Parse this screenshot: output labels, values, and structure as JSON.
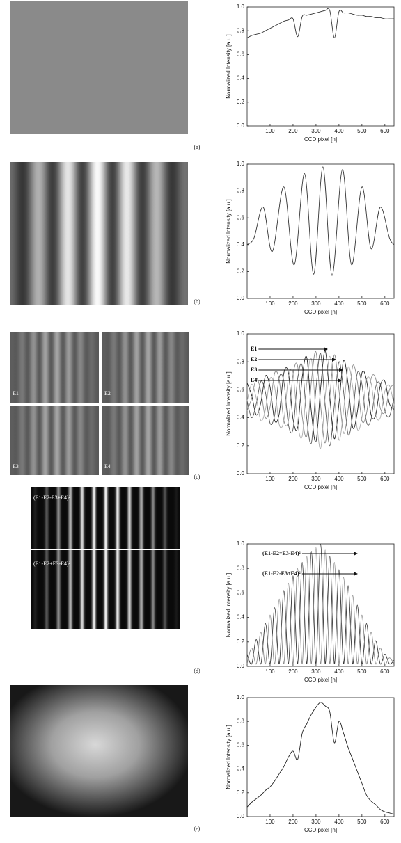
{
  "chart_data": [
    {
      "type": "line",
      "panel_label": "(a)",
      "x_label": "CCD pixel [n]",
      "y_label": "Normalized Intensity [a.u.]",
      "x": [
        0,
        20,
        40,
        60,
        80,
        100,
        120,
        140,
        160,
        180,
        200,
        220,
        240,
        260,
        280,
        300,
        320,
        340,
        360,
        380,
        400,
        420,
        440,
        460,
        480,
        500,
        520,
        540,
        560,
        580,
        600,
        620,
        640
      ],
      "series": [
        {
          "name": null,
          "color": "#333333",
          "values": [
            0.74,
            0.76,
            0.77,
            0.78,
            0.8,
            0.82,
            0.84,
            0.86,
            0.88,
            0.89,
            0.9,
            0.75,
            0.92,
            0.93,
            0.94,
            0.95,
            0.96,
            0.97,
            0.97,
            0.74,
            0.96,
            0.95,
            0.95,
            0.94,
            0.93,
            0.93,
            0.92,
            0.92,
            0.91,
            0.91,
            0.9,
            0.9,
            0.9
          ]
        }
      ],
      "xlim": [
        0,
        640
      ],
      "ylim": [
        0,
        1
      ],
      "xticks": [
        100,
        200,
        300,
        400,
        500,
        600
      ],
      "yticks": [
        {
          "value": 0,
          "label": "0.0"
        },
        0.2,
        0.4,
        0.6,
        0.8,
        {
          "value": 1,
          "label": "1.0"
        }
      ]
    },
    {
      "type": "line",
      "panel_label": "(b)",
      "x_label": "CCD pixel [n]",
      "y_label": "Normalized Intensity [a.u.]",
      "x": [
        0,
        30,
        70,
        110,
        160,
        205,
        250,
        290,
        330,
        370,
        415,
        455,
        500,
        540,
        580,
        620,
        640
      ],
      "series": [
        {
          "name": null,
          "color": "#333333",
          "values": [
            0.4,
            0.45,
            0.68,
            0.35,
            0.83,
            0.25,
            0.93,
            0.18,
            0.98,
            0.17,
            0.96,
            0.25,
            0.83,
            0.37,
            0.68,
            0.45,
            0.4
          ]
        }
      ],
      "xlim": [
        0,
        640
      ],
      "ylim": [
        0,
        1
      ],
      "xticks": [
        100,
        200,
        300,
        400,
        500,
        600
      ],
      "yticks": [
        {
          "value": 0,
          "label": "0.0"
        },
        0.2,
        0.4,
        0.6,
        0.8,
        {
          "value": 1,
          "label": "1.0"
        }
      ]
    },
    {
      "type": "line",
      "panel_label": "(c)",
      "x_label": "CCD pixel [n]",
      "y_label": "Normalized Intensity [a.u.]",
      "image_labels": [
        "E1",
        "E2",
        "E3",
        "E4"
      ],
      "x": [
        0,
        20,
        40,
        60,
        80,
        100,
        120,
        140,
        160,
        180,
        200,
        220,
        240,
        260,
        280,
        300,
        320,
        340,
        360,
        380,
        400,
        420,
        440,
        460,
        480,
        500,
        520,
        540,
        560,
        580,
        600,
        620,
        640
      ],
      "series": [
        {
          "name": "E1",
          "color": "#222222",
          "values": [
            0.65,
            0.56,
            0.42,
            0.51,
            0.7,
            0.62,
            0.38,
            0.43,
            0.72,
            0.72,
            0.39,
            0.33,
            0.69,
            0.83,
            0.44,
            0.23,
            0.61,
            0.88,
            0.55,
            0.25,
            0.5,
            0.81,
            0.64,
            0.33,
            0.44,
            0.72,
            0.67,
            0.42,
            0.42,
            0.63,
            0.66,
            0.5,
            0.46
          ]
        },
        {
          "name": "E2",
          "color": "#555555",
          "values": [
            0.52,
            0.4,
            0.5,
            0.66,
            0.58,
            0.36,
            0.42,
            0.69,
            0.66,
            0.35,
            0.32,
            0.68,
            0.77,
            0.39,
            0.22,
            0.61,
            0.86,
            0.49,
            0.2,
            0.49,
            0.8,
            0.59,
            0.28,
            0.42,
            0.72,
            0.64,
            0.37,
            0.39,
            0.62,
            0.64,
            0.45,
            0.41,
            0.55
          ]
        },
        {
          "name": "E3",
          "color": "#888888",
          "values": [
            0.45,
            0.54,
            0.68,
            0.59,
            0.4,
            0.48,
            0.72,
            0.67,
            0.38,
            0.38,
            0.71,
            0.77,
            0.41,
            0.27,
            0.66,
            0.87,
            0.49,
            0.22,
            0.55,
            0.85,
            0.6,
            0.29,
            0.46,
            0.77,
            0.66,
            0.38,
            0.43,
            0.68,
            0.68,
            0.47,
            0.44,
            0.6,
            0.64
          ]
        },
        {
          "name": "E4",
          "color": "#aaaaaa",
          "values": [
            0.52,
            0.64,
            0.54,
            0.38,
            0.46,
            0.68,
            0.62,
            0.35,
            0.38,
            0.69,
            0.72,
            0.36,
            0.27,
            0.65,
            0.82,
            0.43,
            0.18,
            0.55,
            0.84,
            0.55,
            0.24,
            0.45,
            0.76,
            0.62,
            0.32,
            0.4,
            0.67,
            0.65,
            0.42,
            0.4,
            0.59,
            0.63,
            0.49
          ]
        }
      ],
      "xlim": [
        0,
        640
      ],
      "ylim": [
        0,
        1
      ],
      "xticks": [
        100,
        200,
        300,
        400,
        500,
        600
      ],
      "yticks": [
        {
          "value": 0,
          "label": "0.0"
        },
        0.2,
        0.4,
        0.6,
        0.8,
        {
          "value": 1,
          "label": "1.0"
        }
      ]
    },
    {
      "type": "line",
      "panel_label": "(d)",
      "x_label": "CCD pixel [n]",
      "y_label": "Normalized Intensity [a.u.]",
      "image_labels": [
        "(E1-E2-E3+E4)²",
        "(E1-E2+E3-E4)²"
      ],
      "x": [
        0,
        20,
        40,
        60,
        80,
        100,
        120,
        140,
        160,
        180,
        200,
        220,
        240,
        260,
        280,
        300,
        320,
        340,
        360,
        380,
        400,
        420,
        440,
        460,
        480,
        500,
        520,
        540,
        560,
        580,
        600,
        620,
        640
      ],
      "series": [
        {
          "name": "(E1-E2+E3-E4)²",
          "color": "#333333",
          "values": [
            0.1,
            0.02,
            0.22,
            0.02,
            0.35,
            0.02,
            0.48,
            0.02,
            0.62,
            0.02,
            0.74,
            0.02,
            0.85,
            0.02,
            0.94,
            0.02,
            1.0,
            0.02,
            0.9,
            0.02,
            0.79,
            0.02,
            0.66,
            0.02,
            0.5,
            0.02,
            0.35,
            0.02,
            0.21,
            0.02,
            0.1,
            0.02,
            0.05
          ]
        },
        {
          "name": "(E1-E2-E3+E4)²",
          "color": "#888888",
          "values": [
            0.02,
            0.15,
            0.02,
            0.28,
            0.02,
            0.42,
            0.02,
            0.55,
            0.02,
            0.68,
            0.02,
            0.8,
            0.02,
            0.9,
            0.02,
            0.97,
            0.02,
            0.95,
            0.02,
            0.85,
            0.02,
            0.73,
            0.02,
            0.58,
            0.02,
            0.42,
            0.02,
            0.28,
            0.02,
            0.15,
            0.02,
            0.07,
            0.02
          ]
        }
      ],
      "xlim": [
        0,
        640
      ],
      "ylim": [
        0,
        1
      ],
      "xticks": [
        100,
        200,
        300,
        400,
        500,
        600
      ],
      "yticks": [
        {
          "value": 0,
          "label": "0.0"
        },
        0.2,
        0.4,
        0.6,
        0.8,
        {
          "value": 1,
          "label": "1.0"
        }
      ]
    },
    {
      "type": "line",
      "panel_label": "(e)",
      "x_label": "CCD pixel [n]",
      "y_label": "Normalized Intensity [a.u.]",
      "x": [
        0,
        20,
        40,
        60,
        80,
        100,
        120,
        140,
        160,
        180,
        200,
        220,
        240,
        260,
        280,
        300,
        320,
        340,
        360,
        380,
        400,
        420,
        440,
        460,
        480,
        500,
        520,
        540,
        560,
        580,
        600,
        620,
        640
      ],
      "series": [
        {
          "name": null,
          "color": "#222222",
          "values": [
            0.08,
            0.12,
            0.15,
            0.18,
            0.22,
            0.25,
            0.3,
            0.36,
            0.42,
            0.5,
            0.55,
            0.48,
            0.7,
            0.78,
            0.86,
            0.92,
            0.96,
            0.93,
            0.88,
            0.62,
            0.8,
            0.7,
            0.58,
            0.48,
            0.38,
            0.28,
            0.18,
            0.13,
            0.1,
            0.06,
            0.04,
            0.03,
            0.02
          ]
        }
      ],
      "xlim": [
        0,
        640
      ],
      "ylim": [
        0,
        1
      ],
      "xticks": [
        100,
        200,
        300,
        400,
        500,
        600
      ],
      "yticks": [
        {
          "value": 0,
          "label": "0.0"
        },
        0.2,
        0.4,
        0.6,
        0.8,
        {
          "value": 1,
          "label": "1.0"
        }
      ]
    }
  ]
}
